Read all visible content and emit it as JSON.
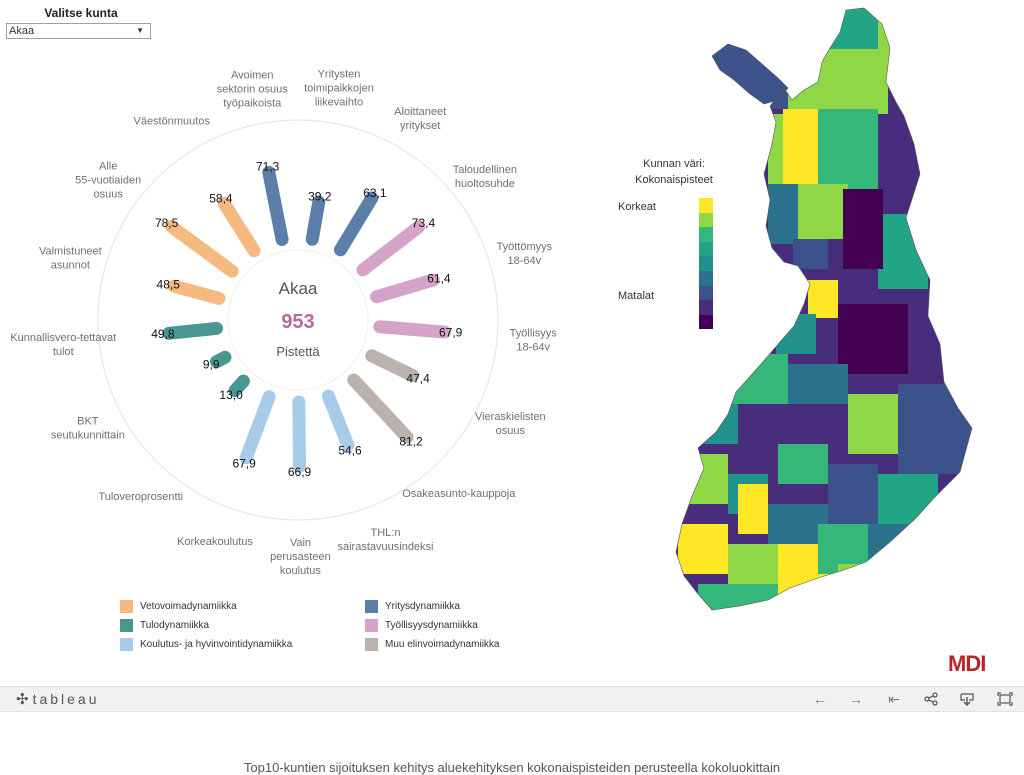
{
  "filter": {
    "title": "Valitse kunta",
    "value": "Akaa"
  },
  "chart_data": {
    "type": "radial-bar",
    "center": {
      "name": "Akaa",
      "total": "953",
      "unit": "Pistettä"
    },
    "bars": [
      {
        "label": "Yritysten toimipaikkojen liikevaihto",
        "value": 39.2,
        "value_label": "39,2",
        "group": "Yritysdynamiikka"
      },
      {
        "label": "Aloittaneet yritykset",
        "value": 63.1,
        "value_label": "63,1",
        "group": "Yritysdynamiikka"
      },
      {
        "label": "Taloudellinen huoltosuhde",
        "value": 73.4,
        "value_label": "73,4",
        "group": "Työllisyysdynamiikka"
      },
      {
        "label": "Työttömyys 18-64v",
        "value": 61.4,
        "value_label": "61,4",
        "group": "Työllisyysdynamiikka"
      },
      {
        "label": "Työllisyys 18-64v",
        "value": 67.9,
        "value_label": "67,9",
        "group": "Työllisyysdynamiikka"
      },
      {
        "label": "Vieraskielisten osuus",
        "value": 47.4,
        "value_label": "47,4",
        "group": "Muu elinvoimadynamiikka"
      },
      {
        "label": "Osakeasunto-kauppoja",
        "value": 81.2,
        "value_label": "81,2",
        "group": "Muu elinvoimadynamiikka"
      },
      {
        "label": "THL:n sairastavuusindeksi",
        "value": 54.6,
        "value_label": "54,6",
        "group": "Koulutus- ja hyvinvointidynamiikka"
      },
      {
        "label": "Vain perusasteen koulutus",
        "value": 66.9,
        "value_label": "66,9",
        "group": "Koulutus- ja hyvinvointidynamiikka"
      },
      {
        "label": "Korkeakoulutus",
        "value": 67.9,
        "value_label": "67,9",
        "group": "Koulutus- ja hyvinvointidynamiikka"
      },
      {
        "label": "Tuloveroprosentti",
        "value": 13.0,
        "value_label": "13,0",
        "group": "Tulodynamiikka"
      },
      {
        "label": "BKT seutukunnittain",
        "value": 9.9,
        "value_label": "9,9",
        "group": "Tulodynamiikka"
      },
      {
        "label": "Kunnallisvero-tettavat tulot",
        "value": 49.8,
        "value_label": "49,8",
        "group": "Tulodynamiikka"
      },
      {
        "label": "Valmistuneet asunnot",
        "value": 48.5,
        "value_label": "48,5",
        "group": "Vetovoimadynamiikka"
      },
      {
        "label": "Alle 55-vuotiaiden osuus",
        "value": 78.5,
        "value_label": "78,5",
        "group": "Vetovoimadynamiikka"
      },
      {
        "label": "Väestönmuutos",
        "value": 58.4,
        "value_label": "58,4",
        "group": "Vetovoimadynamiikka"
      },
      {
        "label": "Avoimen sektorin osuus työpaikoista",
        "value": 71.3,
        "value_label": "71,3",
        "group": "Yritysdynamiikka"
      }
    ],
    "groups": [
      {
        "name": "Vetovoimadynamiikka",
        "color": "#f6b980"
      },
      {
        "name": "Yritysdynamiikka",
        "color": "#5b7fa8"
      },
      {
        "name": "Tulodynamiikka",
        "color": "#4a9690"
      },
      {
        "name": "Työllisyysdynamiikka",
        "color": "#d5a3c8"
      },
      {
        "name": "Koulutus- ja hyvinvointidynamiikka",
        "color": "#a7cbe8"
      },
      {
        "name": "Muu elinvoimadynamiikka",
        "color": "#bcb2ad"
      }
    ],
    "value_range": [
      0,
      100
    ]
  },
  "legend": [
    {
      "label": "Vetovoimadynamiikka",
      "color": "#f6b980"
    },
    {
      "label": "Yritysdynamiikka",
      "color": "#5b7fa8"
    },
    {
      "label": "Tulodynamiikka",
      "color": "#4a9690"
    },
    {
      "label": "Työllisyysdynamiikka",
      "color": "#d5a3c8"
    },
    {
      "label": "Koulutus- ja hyvinvointidynamiikka",
      "color": "#a7cbe8"
    },
    {
      "label": "Muu elinvoimadynamiikka",
      "color": "#bcb2ad"
    }
  ],
  "map": {
    "legend_title_1": "Kunnan väri:",
    "legend_title_2": "Kokonaispisteet",
    "high_label": "Korkeat",
    "low_label": "Matalat",
    "scale_colors": [
      "#fde725",
      "#8fd744",
      "#35b779",
      "#21a585",
      "#21918c",
      "#2c728e",
      "#3b528b",
      "#472d7b",
      "#440154"
    ]
  },
  "brand": "MDI",
  "toolbar": {
    "logo_text": "tableau",
    "undo_icon": "undo-arrow-icon",
    "redo_icon": "redo-arrow-icon",
    "revert_icon": "revert-icon",
    "share_icon": "share-icon",
    "download_icon": "download-icon",
    "fullscreen_icon": "fullscreen-icon"
  },
  "below_title": "Top10-kuntien sijoituksen kehitys aluekehityksen kokonaispisteiden perusteella kokoluokittain"
}
